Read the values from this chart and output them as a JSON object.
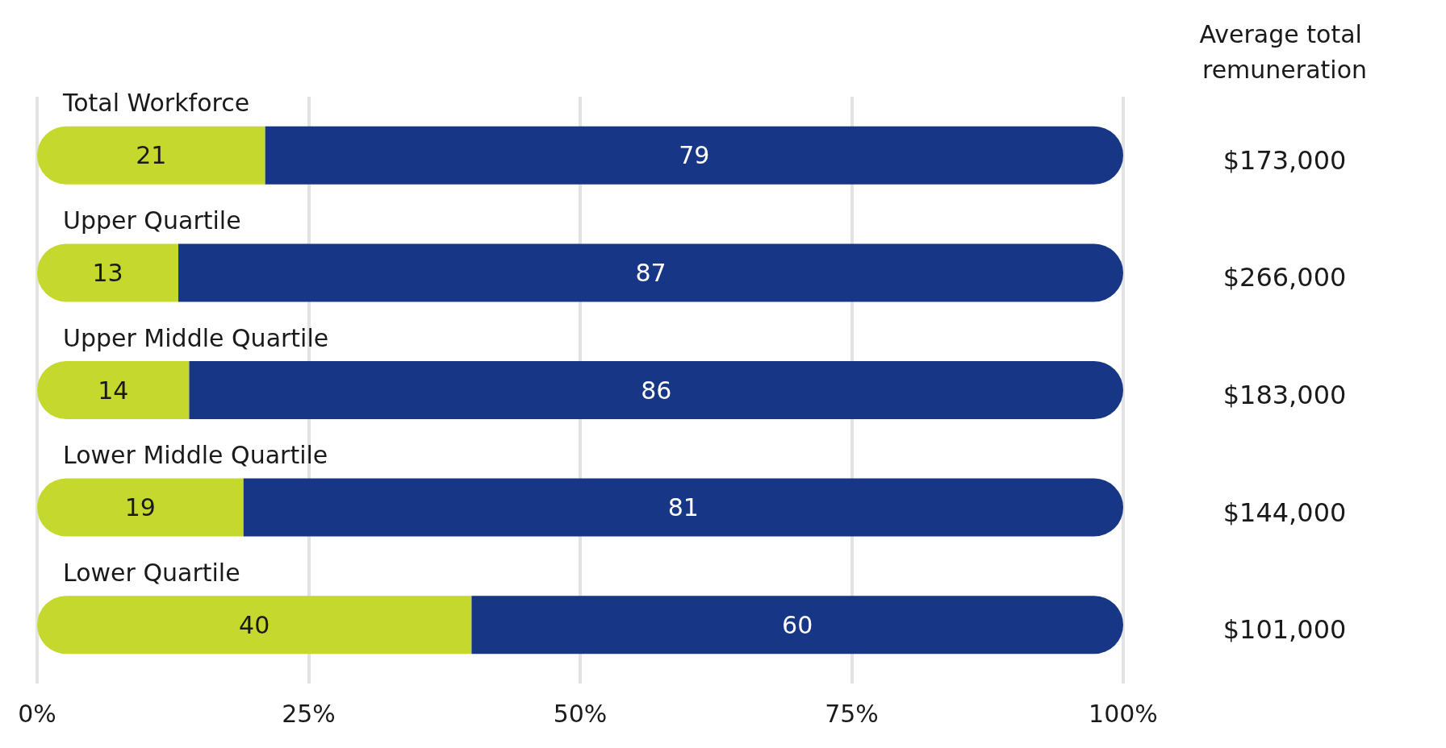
{
  "chart_data": {
    "type": "bar",
    "orientation": "horizontal",
    "stacked": true,
    "categories": [
      "Total Workforce",
      "Upper Quartile",
      "Upper Middle Quartile",
      "Lower Middle Quartile",
      "Lower Quartile"
    ],
    "series": [
      {
        "color": "#c5d82e",
        "values": [
          21,
          13,
          14,
          19,
          40
        ]
      },
      {
        "color": "#173686",
        "values": [
          79,
          87,
          86,
          81,
          60
        ]
      }
    ],
    "xlim": [
      0,
      100
    ],
    "xticks": [
      {
        "value": 0,
        "label": "0%"
      },
      {
        "value": 25,
        "label": "25%"
      },
      {
        "value": 50,
        "label": "50%"
      },
      {
        "value": 75,
        "label": "75%"
      },
      {
        "value": 100,
        "label": "100%"
      }
    ],
    "grid": "x",
    "data_labels": true,
    "annotations": [
      "Average total remuneration",
      "$173,000",
      "$266,000",
      "$183,000",
      "$144,000",
      "$101,000"
    ]
  }
}
